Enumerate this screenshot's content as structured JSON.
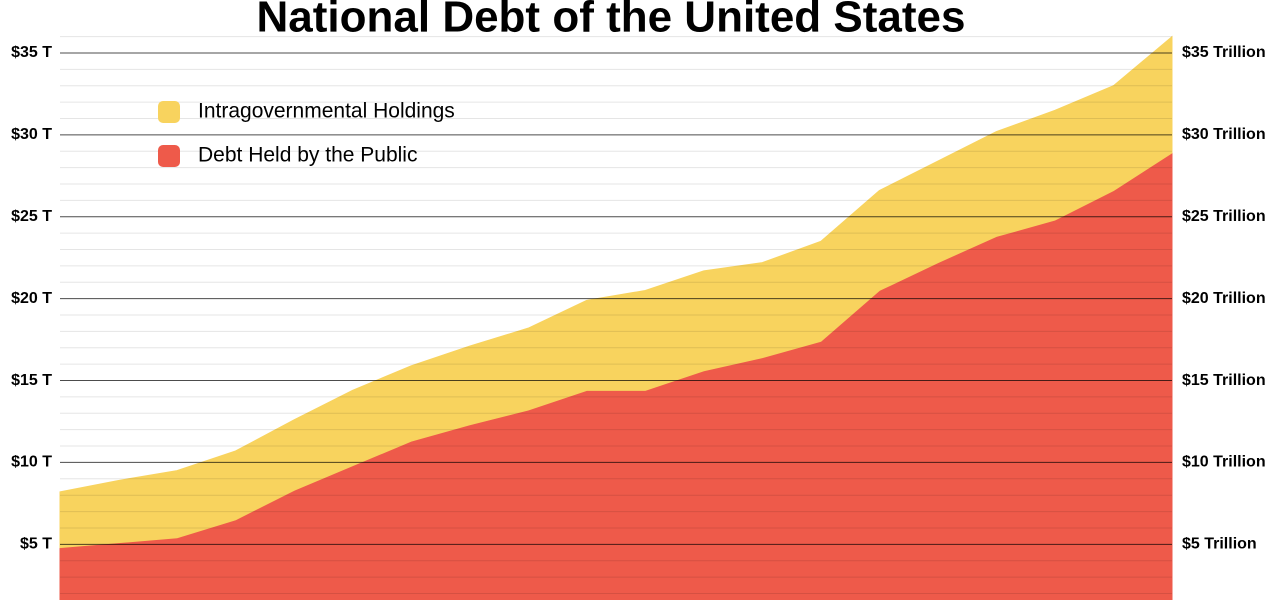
{
  "chart_data": {
    "type": "stacked_area",
    "title": "National Debt of the United States",
    "categories": [
      null,
      null,
      null,
      null,
      null,
      null,
      null,
      null,
      null,
      null,
      null,
      null,
      null,
      null,
      null,
      null,
      null,
      null,
      null,
      null
    ],
    "series": [
      {
        "name": "Debt Held by the Public",
        "color": "#ee5a4a",
        "values": [
          4.8,
          5.1,
          5.4,
          6.5,
          8.3,
          9.8,
          11.3,
          12.3,
          13.2,
          14.4,
          14.4,
          15.6,
          16.4,
          17.4,
          20.5,
          22.2,
          23.8,
          24.8,
          26.6,
          28.9
        ]
      },
      {
        "name": "Intragovernmental Holdings",
        "color": "#f8d35e",
        "values": [
          3.4,
          3.8,
          4.1,
          4.2,
          4.3,
          4.6,
          4.6,
          4.8,
          5.0,
          5.5,
          6.1,
          6.1,
          5.8,
          6.1,
          6.1,
          6.2,
          6.4,
          6.7,
          6.4,
          7.1
        ]
      }
    ],
    "ylim": [
      1.6,
      36.1
    ],
    "yticks": [
      {
        "value": 5,
        "label": "$5 T"
      },
      {
        "value": 10,
        "label": "$10 T"
      },
      {
        "value": 15,
        "label": "$15 T"
      },
      {
        "value": 20,
        "label": "$20 T"
      },
      {
        "value": 25,
        "label": "$25 T"
      },
      {
        "value": 30,
        "label": "$30 T"
      },
      {
        "value": 35,
        "label": "$35 T"
      }
    ],
    "y2lim": [
      1.6,
      36.1
    ],
    "y2ticks": [
      {
        "value": 5,
        "label": "$5 Trillion"
      },
      {
        "value": 10,
        "label": "$10 Trillion"
      },
      {
        "value": 15,
        "label": "$15 Trillion"
      },
      {
        "value": 20,
        "label": "$20 Trillion"
      },
      {
        "value": 25,
        "label": "$25 Trillion"
      },
      {
        "value": 30,
        "label": "$30 Trillion"
      },
      {
        "value": 35,
        "label": "$35 Trillion"
      }
    ],
    "minor_yticks": [
      2,
      3,
      4,
      6,
      7,
      8,
      9,
      11,
      12,
      13,
      14,
      16,
      17,
      18,
      19,
      21,
      22,
      23,
      24,
      26,
      27,
      28,
      29,
      31,
      32,
      33,
      34,
      36
    ],
    "grid": true,
    "legend": "upper-left"
  }
}
